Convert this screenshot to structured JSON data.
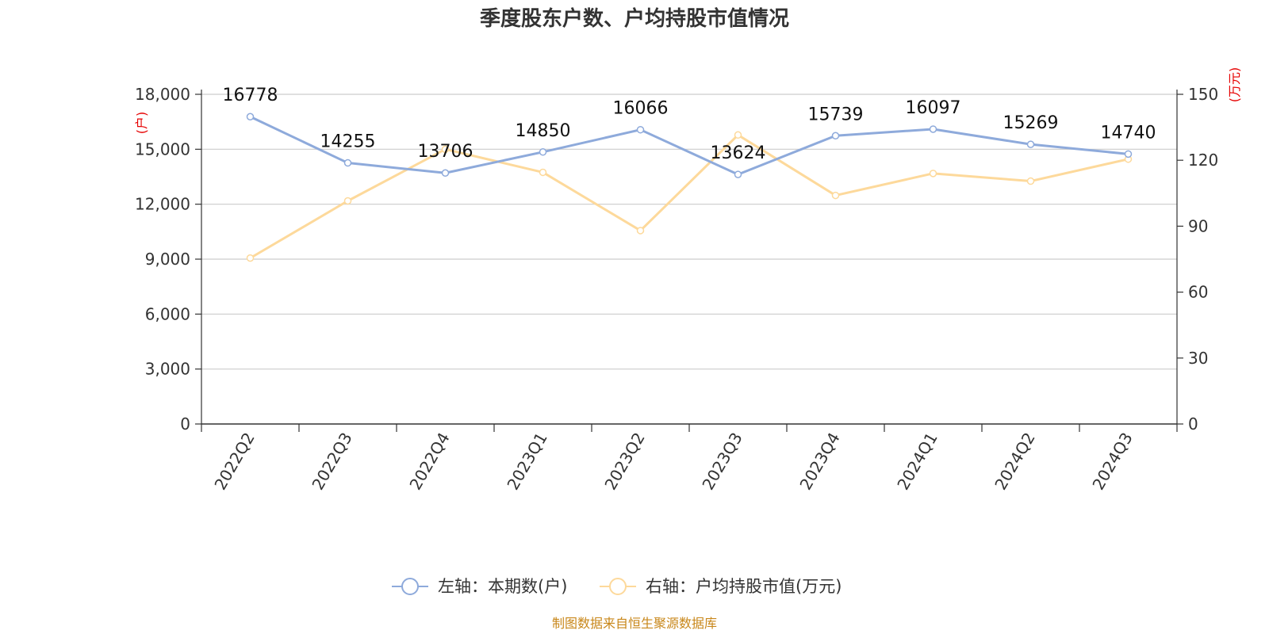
{
  "chart_data": {
    "type": "line",
    "title": "季度股东户数、户均持股市值情况",
    "categories": [
      "2022Q2",
      "2022Q3",
      "2022Q4",
      "2023Q1",
      "2023Q2",
      "2023Q3",
      "2023Q4",
      "2024Q1",
      "2024Q2",
      "2024Q3"
    ],
    "left_axis": {
      "unit": "(户)",
      "ylim": [
        0,
        18000
      ],
      "ticks": [
        "0",
        "3,000",
        "6,000",
        "9,000",
        "12,000",
        "15,000",
        "18,000"
      ]
    },
    "right_axis": {
      "unit": "(万元)",
      "ylim": [
        0,
        150
      ],
      "ticks": [
        "0",
        "30",
        "60",
        "90",
        "120",
        "150"
      ]
    },
    "series": [
      {
        "name": "左轴：本期数(户)",
        "axis": "left",
        "color": "#8eaadb",
        "values": [
          16778,
          14255,
          13706,
          14850,
          16066,
          13624,
          15739,
          16097,
          15269,
          14740
        ],
        "labels": [
          "16778",
          "14255",
          "13706",
          "14850",
          "16066",
          "13624",
          "15739",
          "16097",
          "15269",
          "14740"
        ]
      },
      {
        "name": "右轴：户均持股市值(万元)",
        "axis": "right",
        "color": "#fdd99b",
        "values": [
          75.5,
          101.5,
          125.0,
          114.5,
          88.0,
          131.5,
          104.0,
          114.0,
          110.5,
          120.5
        ]
      }
    ],
    "grid": true,
    "legend_position": "bottom"
  },
  "source": "制图数据来自恒生聚源数据库"
}
